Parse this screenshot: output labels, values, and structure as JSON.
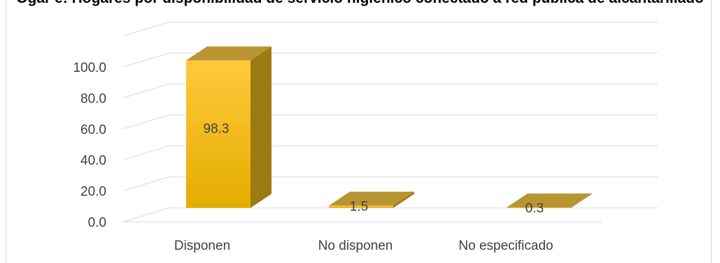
{
  "chart_data": {
    "type": "bar",
    "title": "Ogar e: Hogares por disponibilidad de servicio higiénico conectado a red pública de alcantarillado",
    "categories": [
      "Disponen",
      "No disponen",
      "No especificado"
    ],
    "values": [
      98.3,
      1.5,
      0.3
    ],
    "value_labels": [
      "98.3",
      "1.5",
      "0.3"
    ],
    "yticks": [
      0,
      20,
      40,
      60,
      80,
      100
    ],
    "ytick_labels": [
      "0.0",
      "20.0",
      "40.0",
      "60.0",
      "80.0",
      "100.0"
    ],
    "ylim": [
      0,
      100
    ],
    "xlabel": "",
    "ylabel": "",
    "grid": true,
    "legend": "none",
    "three_d": true,
    "colors": {
      "front_top": "#ffc93c",
      "front_bottom": "#e3ad00",
      "side": "#9c7a12",
      "top": "#b99433",
      "grid": "#d9d9d9",
      "axis_text": "#404040",
      "label_text": "#404040"
    }
  }
}
